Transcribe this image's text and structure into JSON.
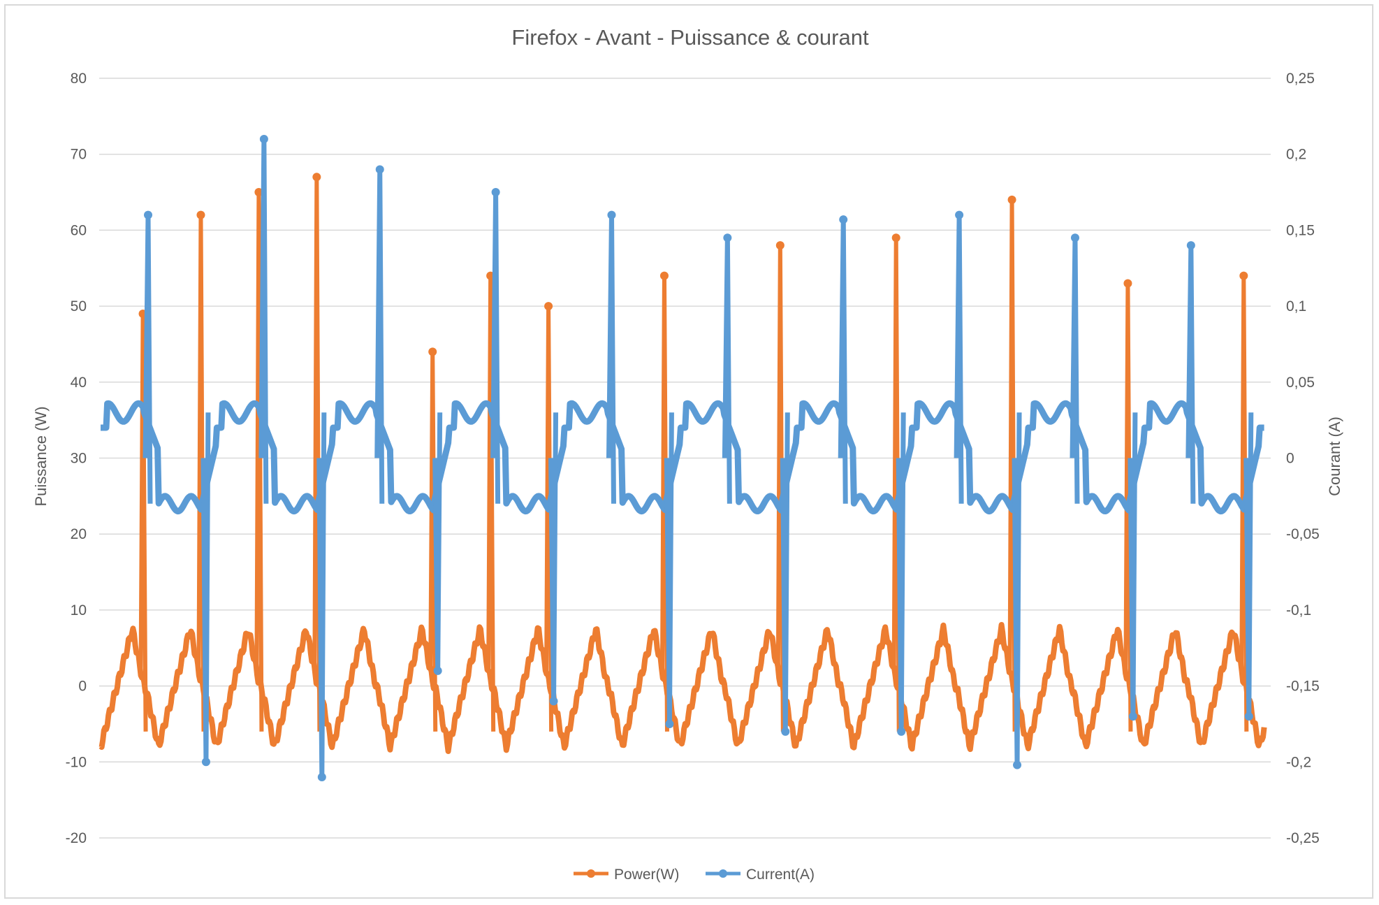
{
  "chart_data": {
    "type": "line",
    "title": "Firefox - Avant - Puissance & courant",
    "ylabel": "Puissance (W)",
    "y2label": "Courant (A)",
    "ylim": [
      -20,
      80
    ],
    "y2lim": [
      -0.25,
      0.25
    ],
    "yticks": [
      "80",
      "70",
      "60",
      "50",
      "40",
      "30",
      "20",
      "10",
      "0",
      "-10",
      "-20"
    ],
    "y2ticks": [
      "0,25",
      "0,2",
      "0,15",
      "0,1",
      "0,05",
      "0",
      "-0,05",
      "-0,1",
      "-0,15",
      "-0,2",
      "-0,25"
    ],
    "grid": true,
    "legend": "bottom",
    "cycles": 20,
    "series": [
      {
        "name": "Power(W)",
        "axis": "left",
        "color": "#ed7d31",
        "baseline_range": [
          -8,
          7.5
        ],
        "peaks": [
          49,
          62,
          65,
          67,
          0,
          44,
          54,
          50,
          0,
          54,
          0,
          58,
          0,
          59,
          0,
          64,
          0,
          53,
          0,
          54
        ]
      },
      {
        "name": "Current(A)",
        "axis": "right",
        "color": "#5b9bd5",
        "plateau_high": 0.03,
        "plateau_low": -0.03,
        "peaks": [
          0.16,
          0.0,
          0.21,
          0.0,
          0.19,
          0.0,
          0.175,
          0.0,
          0.16,
          0.0,
          0.145,
          0.0,
          0.157,
          0.0,
          0.16,
          0.0,
          0.145,
          0.0,
          0.14,
          0.0
        ],
        "troughs": [
          0.0,
          -0.2,
          0.0,
          -0.21,
          0.0,
          -0.14,
          0.0,
          -0.16,
          0.0,
          -0.175,
          0.0,
          -0.18,
          0.0,
          -0.18,
          0.0,
          -0.202,
          0.0,
          -0.17,
          0.0,
          -0.17
        ]
      }
    ]
  }
}
